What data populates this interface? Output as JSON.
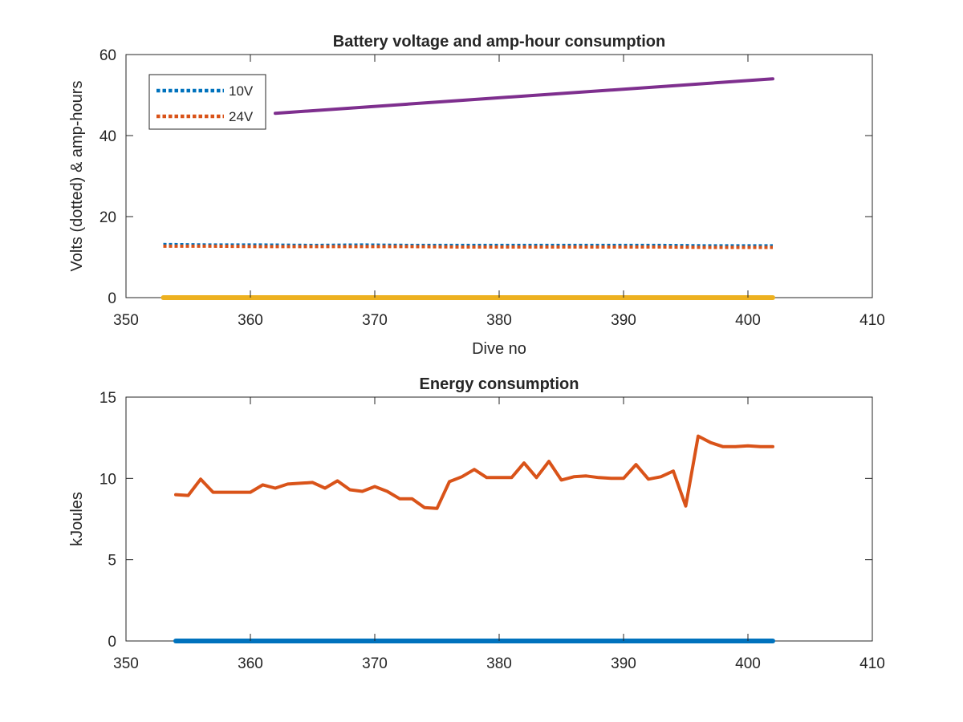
{
  "chart_data": [
    {
      "type": "line",
      "title": "Battery voltage and amp-hour consumption",
      "xlabel": "Dive no",
      "ylabel": "Volts (dotted) & amp-hours",
      "xlim": [
        350,
        410
      ],
      "ylim": [
        0,
        60
      ],
      "xticks": [
        350,
        360,
        370,
        380,
        390,
        400,
        410
      ],
      "yticks": [
        0,
        20,
        40,
        60
      ],
      "grid": false,
      "legend_position": "top-left",
      "series": [
        {
          "name": "10V",
          "style": "dotted",
          "color": "#0072BD",
          "x": [
            353,
            357,
            361,
            365,
            369,
            373,
            377,
            381,
            385,
            389,
            393,
            397,
            402
          ],
          "y": [
            13.1,
            13.0,
            13.0,
            12.9,
            13.0,
            12.9,
            12.9,
            12.9,
            12.9,
            12.9,
            12.9,
            12.8,
            12.8
          ]
        },
        {
          "name": "24V",
          "style": "dotted",
          "color": "#D95319",
          "x": [
            353,
            357,
            361,
            365,
            369,
            373,
            377,
            381,
            385,
            389,
            393,
            397,
            402
          ],
          "y": [
            12.7,
            12.7,
            12.6,
            12.6,
            12.6,
            12.6,
            12.5,
            12.5,
            12.5,
            12.5,
            12.5,
            12.4,
            12.4
          ]
        },
        {
          "style": "solid",
          "color": "#EDB120",
          "x": [
            353,
            402
          ],
          "y": [
            0,
            0
          ]
        },
        {
          "style": "solid",
          "color": "#7E2F8E",
          "x": [
            362,
            402
          ],
          "y": [
            45.5,
            54
          ]
        }
      ]
    },
    {
      "type": "line",
      "title": "Energy consumption",
      "xlabel": "",
      "ylabel": "kJoules",
      "xlim": [
        350,
        410
      ],
      "ylim": [
        0,
        15
      ],
      "xticks": [
        350,
        360,
        370,
        380,
        390,
        400,
        410
      ],
      "yticks": [
        0,
        5,
        10,
        15
      ],
      "grid": false,
      "series": [
        {
          "style": "solid",
          "color": "#0072BD",
          "x": [
            354,
            402
          ],
          "y": [
            0,
            0
          ]
        },
        {
          "style": "solid",
          "color": "#D95319",
          "x": [
            354,
            355,
            356,
            357,
            358,
            359,
            360,
            361,
            362,
            363,
            364,
            365,
            366,
            367,
            368,
            369,
            370,
            371,
            372,
            373,
            374,
            375,
            376,
            377,
            378,
            379,
            380,
            381,
            382,
            383,
            384,
            385,
            386,
            387,
            388,
            389,
            390,
            391,
            392,
            393,
            394,
            395,
            396,
            397,
            398,
            399,
            400,
            401,
            402
          ],
          "y": [
            9.0,
            8.95,
            9.95,
            9.15,
            9.15,
            9.15,
            9.15,
            9.6,
            9.4,
            9.65,
            9.7,
            9.75,
            9.4,
            9.85,
            9.3,
            9.2,
            9.5,
            9.2,
            8.75,
            8.75,
            8.2,
            8.15,
            9.8,
            10.1,
            10.55,
            10.05,
            10.05,
            10.05,
            10.95,
            10.05,
            11.05,
            9.9,
            10.1,
            10.15,
            10.05,
            10.0,
            10.0,
            10.85,
            9.95,
            10.1,
            10.45,
            8.3,
            12.6,
            12.2,
            11.95,
            11.95,
            12.0,
            11.95,
            11.95
          ]
        }
      ]
    }
  ]
}
